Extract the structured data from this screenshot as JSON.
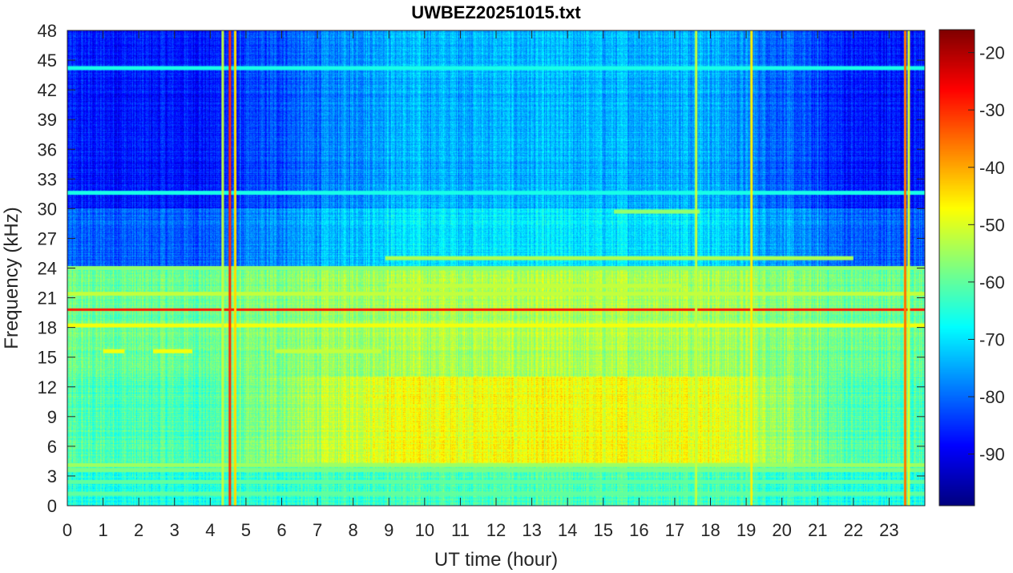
{
  "chart_data": {
    "type": "heatmap",
    "title": "UWBEZ20251015.txt",
    "xlabel": "UT time (hour)",
    "ylabel": "Frequency (kHz)",
    "xlim": [
      0,
      24
    ],
    "ylim": [
      0,
      48
    ],
    "x_ticks": [
      0,
      1,
      2,
      3,
      4,
      5,
      6,
      7,
      8,
      9,
      10,
      11,
      12,
      13,
      14,
      15,
      16,
      17,
      18,
      19,
      20,
      21,
      22,
      23
    ],
    "y_ticks": [
      0,
      3,
      6,
      9,
      12,
      15,
      18,
      21,
      24,
      27,
      30,
      33,
      36,
      39,
      42,
      45,
      48
    ],
    "colorbar": {
      "colormap": "jet",
      "range": [
        -99,
        -16
      ],
      "ticks": [
        -20,
        -30,
        -40,
        -50,
        -60,
        -70,
        -80,
        -90
      ]
    },
    "background_db": [
      {
        "f_min": 0,
        "f_max": 4,
        "night_db": -66,
        "day_db": -62
      },
      {
        "f_min": 4,
        "f_max": 13,
        "night_db": -63,
        "day_db": -48
      },
      {
        "f_min": 13,
        "f_max": 24,
        "night_db": -60,
        "day_db": -54
      },
      {
        "f_min": 24,
        "f_max": 30,
        "night_db": -82,
        "day_db": -70
      },
      {
        "f_min": 30,
        "f_max": 48,
        "night_db": -88,
        "day_db": -74
      }
    ],
    "horizontal_lines": [
      {
        "freq_khz": 19.8,
        "t_start": 0,
        "t_end": 24,
        "db": -28
      },
      {
        "freq_khz": 18.2,
        "t_start": 0,
        "t_end": 24,
        "db": -48
      },
      {
        "freq_khz": 21.4,
        "t_start": 0,
        "t_end": 24,
        "db": -52
      },
      {
        "freq_khz": 24.0,
        "t_start": 0,
        "t_end": 24,
        "db": -56
      },
      {
        "freq_khz": 25.0,
        "t_start": 8.9,
        "t_end": 22,
        "db": -54
      },
      {
        "freq_khz": 22.2,
        "t_start": 9,
        "t_end": 17.2,
        "db": -52
      },
      {
        "freq_khz": 4.1,
        "t_start": 0,
        "t_end": 24,
        "db": -55
      },
      {
        "freq_khz": 3.6,
        "t_start": 0,
        "t_end": 24,
        "db": -58
      },
      {
        "freq_khz": 2.4,
        "t_start": 0,
        "t_end": 24,
        "db": -60
      },
      {
        "freq_khz": 1.2,
        "t_start": 0,
        "t_end": 24,
        "db": -60
      },
      {
        "freq_khz": 15.6,
        "t_start": 1.0,
        "t_end": 1.6,
        "db": -48
      },
      {
        "freq_khz": 15.6,
        "t_start": 2.4,
        "t_end": 3.5,
        "db": -48
      },
      {
        "freq_khz": 15.6,
        "t_start": 5.8,
        "t_end": 8.8,
        "db": -52
      },
      {
        "freq_khz": 29.7,
        "t_start": 15.3,
        "t_end": 17.7,
        "db": -56
      },
      {
        "freq_khz": 31.6,
        "t_start": 0,
        "t_end": 24,
        "db": -66
      },
      {
        "freq_khz": 44.2,
        "t_start": 0,
        "t_end": 24,
        "db": -66
      }
    ],
    "vertical_events": [
      {
        "t_hour": 4.35,
        "db": -52
      },
      {
        "t_hour": 4.55,
        "db": -30
      },
      {
        "t_hour": 4.7,
        "db": -44
      },
      {
        "t_hour": 19.15,
        "db": -46
      },
      {
        "t_hour": 23.45,
        "db": -36
      },
      {
        "t_hour": 23.55,
        "db": -50
      },
      {
        "t_hour": 17.6,
        "db": -52
      }
    ]
  }
}
